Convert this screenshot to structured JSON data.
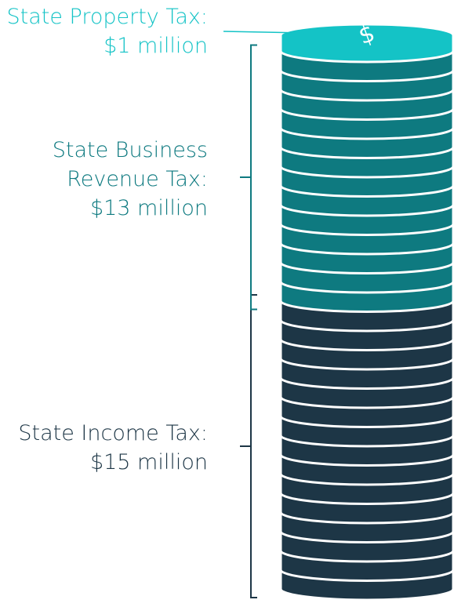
{
  "chart_data": {
    "type": "coin-stack",
    "series": [
      {
        "name": "State Income Tax:",
        "color": "#1d3646",
        "values": [
          15
        ],
        "value_labels": [
          "$15 million"
        ]
      },
      {
        "name": "State Business Revenue Tax:",
        "color": "#0e7a80",
        "values": [
          13
        ],
        "value_labels": [
          "$13 million"
        ]
      },
      {
        "name": "State Property Tax:",
        "color": "#14c3c6",
        "values": [
          1
        ],
        "value_labels": [
          "$1 million"
        ]
      }
    ]
  }
}
